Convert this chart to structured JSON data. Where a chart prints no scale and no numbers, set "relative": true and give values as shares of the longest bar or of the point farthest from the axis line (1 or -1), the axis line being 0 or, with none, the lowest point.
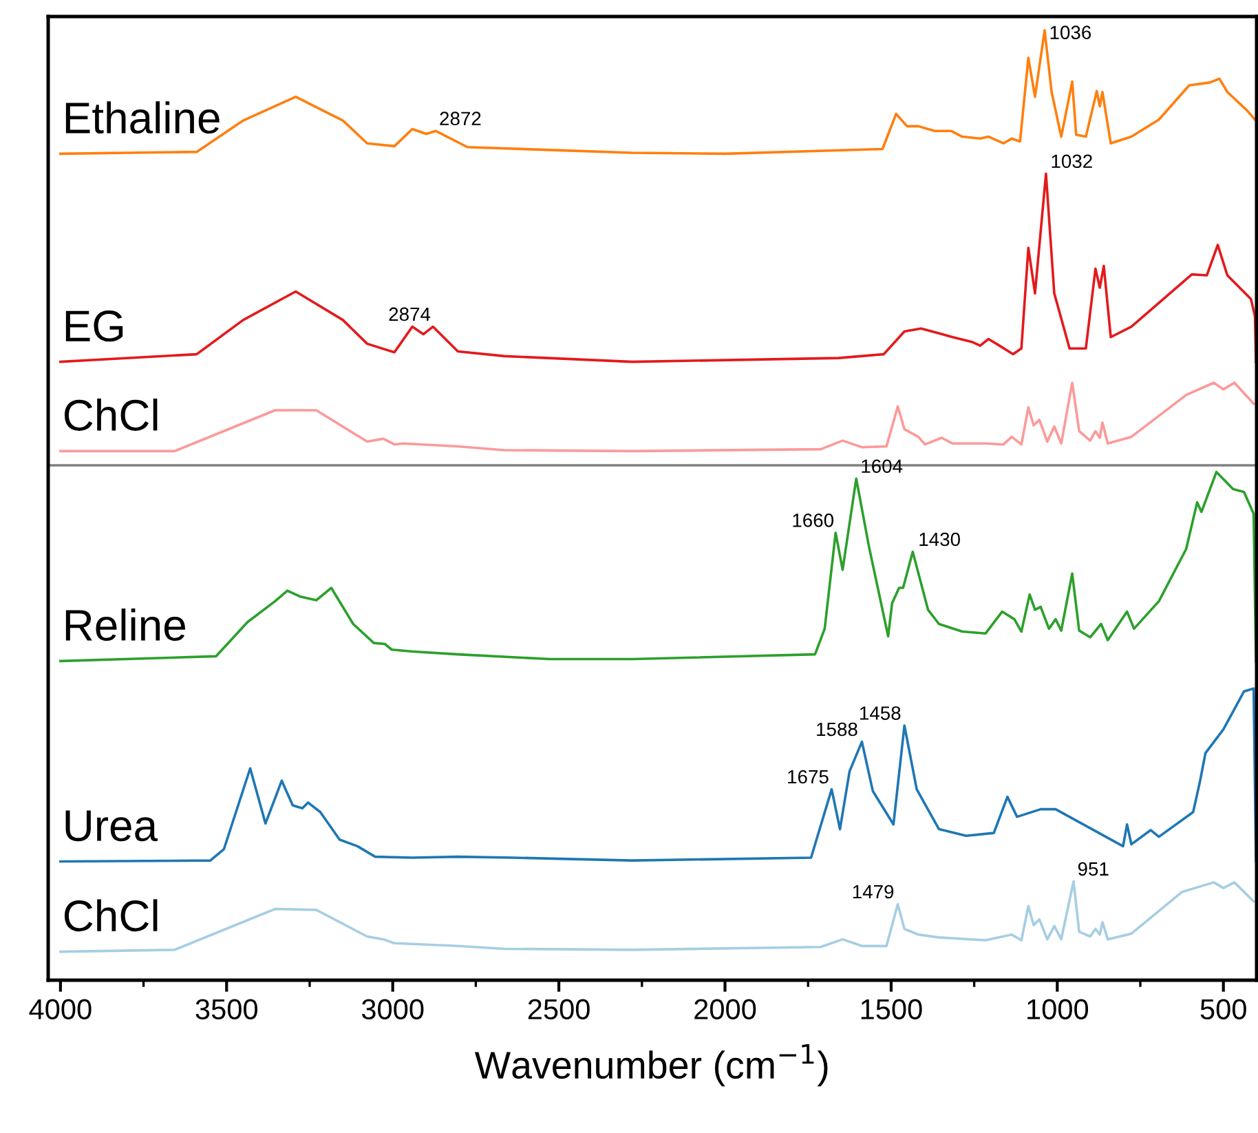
{
  "chart_data": {
    "type": "line",
    "relative": true,
    "xlabel": "Wavenumber (cm$^{−1}$)",
    "xlim": [
      4037,
      400
    ],
    "xticks": [
      4000,
      3500,
      3000,
      2500,
      2000,
      1500,
      1000,
      500
    ],
    "tick_labels": "x",
    "grid": false,
    "legend": false,
    "marker": "none",
    "line_style": "solid",
    "ref_lines": [
      {
        "axis": "y",
        "value": 0.542,
        "color": "#808080"
      }
    ],
    "series": [
      {
        "name": "Ethaline",
        "color": "#ff7f0e",
        "x": [
          4000,
          3590,
          3450,
          3292,
          3150,
          3077,
          2995,
          2941,
          2899,
          2870,
          2775,
          2527,
          2279,
          2000,
          1526,
          1485,
          1452,
          1418,
          1369,
          1319,
          1286,
          1232,
          1207,
          1162,
          1137,
          1112,
          1087,
          1067,
          1038,
          1017,
          988,
          955,
          943,
          914,
          881,
          872,
          864,
          839,
          777,
          694,
          603,
          541,
          512,
          488,
          430,
          405
        ],
        "values": [
          0.87,
          0.872,
          0.905,
          0.93,
          0.905,
          0.881,
          0.878,
          0.896,
          0.891,
          0.894,
          0.877,
          0.874,
          0.871,
          0.87,
          0.875,
          0.912,
          0.899,
          0.899,
          0.894,
          0.894,
          0.888,
          0.886,
          0.888,
          0.881,
          0.886,
          0.883,
          0.971,
          0.93,
          1.0,
          0.935,
          0.888,
          0.946,
          0.89,
          0.888,
          0.936,
          0.92,
          0.935,
          0.881,
          0.888,
          0.906,
          0.942,
          0.945,
          0.949,
          0.935,
          0.916,
          0.906
        ]
      },
      {
        "name": "EG",
        "color": "#e31a1c",
        "x": [
          4000,
          3590,
          3450,
          3292,
          3150,
          3077,
          2995,
          2941,
          2908,
          2879,
          2804,
          2664,
          2279,
          1658,
          1522,
          1460,
          1410,
          1356,
          1315,
          1257,
          1232,
          1207,
          1174,
          1133,
          1108,
          1087,
          1067,
          1034,
          1009,
          963,
          914,
          885,
          872,
          860,
          839,
          777,
          595,
          550,
          517,
          488,
          417,
          405,
          402
        ],
        "values": [
          0.651,
          0.659,
          0.695,
          0.725,
          0.695,
          0.67,
          0.661,
          0.688,
          0.68,
          0.688,
          0.662,
          0.657,
          0.651,
          0.655,
          0.659,
          0.683,
          0.686,
          0.681,
          0.677,
          0.672,
          0.668,
          0.675,
          0.668,
          0.659,
          0.665,
          0.771,
          0.723,
          0.849,
          0.723,
          0.665,
          0.665,
          0.749,
          0.729,
          0.752,
          0.677,
          0.688,
          0.743,
          0.742,
          0.774,
          0.742,
          0.717,
          0.699,
          0.651
        ]
      },
      {
        "name": "ChCl",
        "color": "#fb9a99",
        "x": [
          4000,
          3656,
          3354,
          3230,
          3077,
          3028,
          2995,
          2970,
          2804,
          2664,
          2279,
          1712,
          1646,
          1588,
          1514,
          1480,
          1460,
          1418,
          1398,
          1348,
          1315,
          1216,
          1162,
          1137,
          1108,
          1087,
          1071,
          1054,
          1030,
          1009,
          988,
          955,
          934,
          901,
          885,
          872,
          864,
          848,
          777,
          612,
          529,
          500,
          467,
          409
        ],
        "values": [
          0.557,
          0.557,
          0.6,
          0.6,
          0.567,
          0.57,
          0.564,
          0.565,
          0.562,
          0.558,
          0.557,
          0.559,
          0.568,
          0.561,
          0.562,
          0.604,
          0.58,
          0.572,
          0.564,
          0.571,
          0.565,
          0.565,
          0.564,
          0.572,
          0.564,
          0.603,
          0.584,
          0.59,
          0.567,
          0.583,
          0.565,
          0.629,
          0.578,
          0.568,
          0.578,
          0.571,
          0.587,
          0.565,
          0.572,
          0.616,
          0.629,
          0.622,
          0.629,
          0.607
        ]
      },
      {
        "name": "Reline",
        "color": "#2ca02c",
        "x": [
          4000,
          3532,
          3437,
          3354,
          3317,
          3280,
          3230,
          3185,
          3119,
          3057,
          3024,
          3003,
          2941,
          2804,
          2527,
          2279,
          1729,
          1700,
          1667,
          1646,
          1605,
          1567,
          1509,
          1497,
          1476,
          1464,
          1435,
          1389,
          1356,
          1286,
          1216,
          1166,
          1129,
          1108,
          1083,
          1067,
          1050,
          1025,
          1005,
          988,
          955,
          934,
          901,
          868,
          848,
          790,
          769,
          694,
          612,
          579,
          566,
          521,
          471,
          438,
          409,
          402
        ],
        "values": [
          0.336,
          0.341,
          0.377,
          0.399,
          0.41,
          0.404,
          0.4,
          0.413,
          0.375,
          0.355,
          0.354,
          0.348,
          0.346,
          0.343,
          0.338,
          0.338,
          0.343,
          0.37,
          0.471,
          0.432,
          0.528,
          0.457,
          0.362,
          0.397,
          0.413,
          0.413,
          0.451,
          0.39,
          0.375,
          0.367,
          0.365,
          0.388,
          0.38,
          0.367,
          0.406,
          0.39,
          0.393,
          0.37,
          0.38,
          0.368,
          0.428,
          0.368,
          0.361,
          0.375,
          0.358,
          0.388,
          0.37,
          0.399,
          0.454,
          0.503,
          0.493,
          0.535,
          0.517,
          0.514,
          0.491,
          0.336
        ]
      },
      {
        "name": "Urea",
        "color": "#1f77b4",
        "x": [
          4000,
          3549,
          3508,
          3429,
          3383,
          3334,
          3301,
          3272,
          3255,
          3218,
          3160,
          3106,
          3053,
          2941,
          2804,
          2639,
          2279,
          1741,
          1679,
          1654,
          1625,
          1588,
          1555,
          1493,
          1460,
          1423,
          1356,
          1274,
          1191,
          1150,
          1121,
          1050,
          1005,
          802,
          790,
          777,
          719,
          694,
          591,
          570,
          554,
          500,
          438,
          409,
          402
        ],
        "values": [
          0.125,
          0.126,
          0.138,
          0.223,
          0.165,
          0.21,
          0.184,
          0.181,
          0.187,
          0.177,
          0.148,
          0.141,
          0.13,
          0.129,
          0.13,
          0.129,
          0.126,
          0.129,
          0.201,
          0.159,
          0.22,
          0.251,
          0.199,
          0.164,
          0.268,
          0.201,
          0.159,
          0.152,
          0.155,
          0.193,
          0.172,
          0.18,
          0.18,
          0.141,
          0.164,
          0.143,
          0.158,
          0.151,
          0.177,
          0.21,
          0.239,
          0.264,
          0.304,
          0.307,
          0.126
        ]
      },
      {
        "name": "ChCl",
        "color": "#a6cee3",
        "x": [
          4000,
          3656,
          3354,
          3230,
          3077,
          3028,
          2995,
          2804,
          2664,
          2279,
          1712,
          1646,
          1588,
          1514,
          1480,
          1460,
          1418,
          1356,
          1216,
          1137,
          1108,
          1087,
          1071,
          1054,
          1030,
          1009,
          988,
          951,
          934,
          901,
          885,
          872,
          864,
          848,
          777,
          624,
          529,
          500,
          467,
          409
        ],
        "values": [
          0.03,
          0.032,
          0.075,
          0.074,
          0.046,
          0.043,
          0.039,
          0.036,
          0.033,
          0.032,
          0.035,
          0.043,
          0.036,
          0.036,
          0.08,
          0.054,
          0.048,
          0.045,
          0.042,
          0.048,
          0.042,
          0.078,
          0.058,
          0.064,
          0.043,
          0.057,
          0.043,
          0.104,
          0.051,
          0.046,
          0.054,
          0.048,
          0.061,
          0.043,
          0.049,
          0.093,
          0.103,
          0.097,
          0.103,
          0.083
        ]
      }
    ],
    "annotations": [
      {
        "text": "2872",
        "x": 2872,
        "y": 0.894
      },
      {
        "text": "1036",
        "x": 1036,
        "y": 1.0
      },
      {
        "text": "2874",
        "x": 2874,
        "y": 0.688
      },
      {
        "text": "1032",
        "x": 1032,
        "y": 0.849
      },
      {
        "text": "1604",
        "x": 1604,
        "y": 0.528
      },
      {
        "text": "1660",
        "x": 1660,
        "y": 0.471
      },
      {
        "text": "1430",
        "x": 1430,
        "y": 0.451
      },
      {
        "text": "1588",
        "x": 1588,
        "y": 0.251
      },
      {
        "text": "1458",
        "x": 1458,
        "y": 0.268
      },
      {
        "text": "1675",
        "x": 1675,
        "y": 0.201
      },
      {
        "text": "1479",
        "x": 1479,
        "y": 0.08
      },
      {
        "text": "951",
        "x": 951,
        "y": 0.104
      }
    ]
  }
}
